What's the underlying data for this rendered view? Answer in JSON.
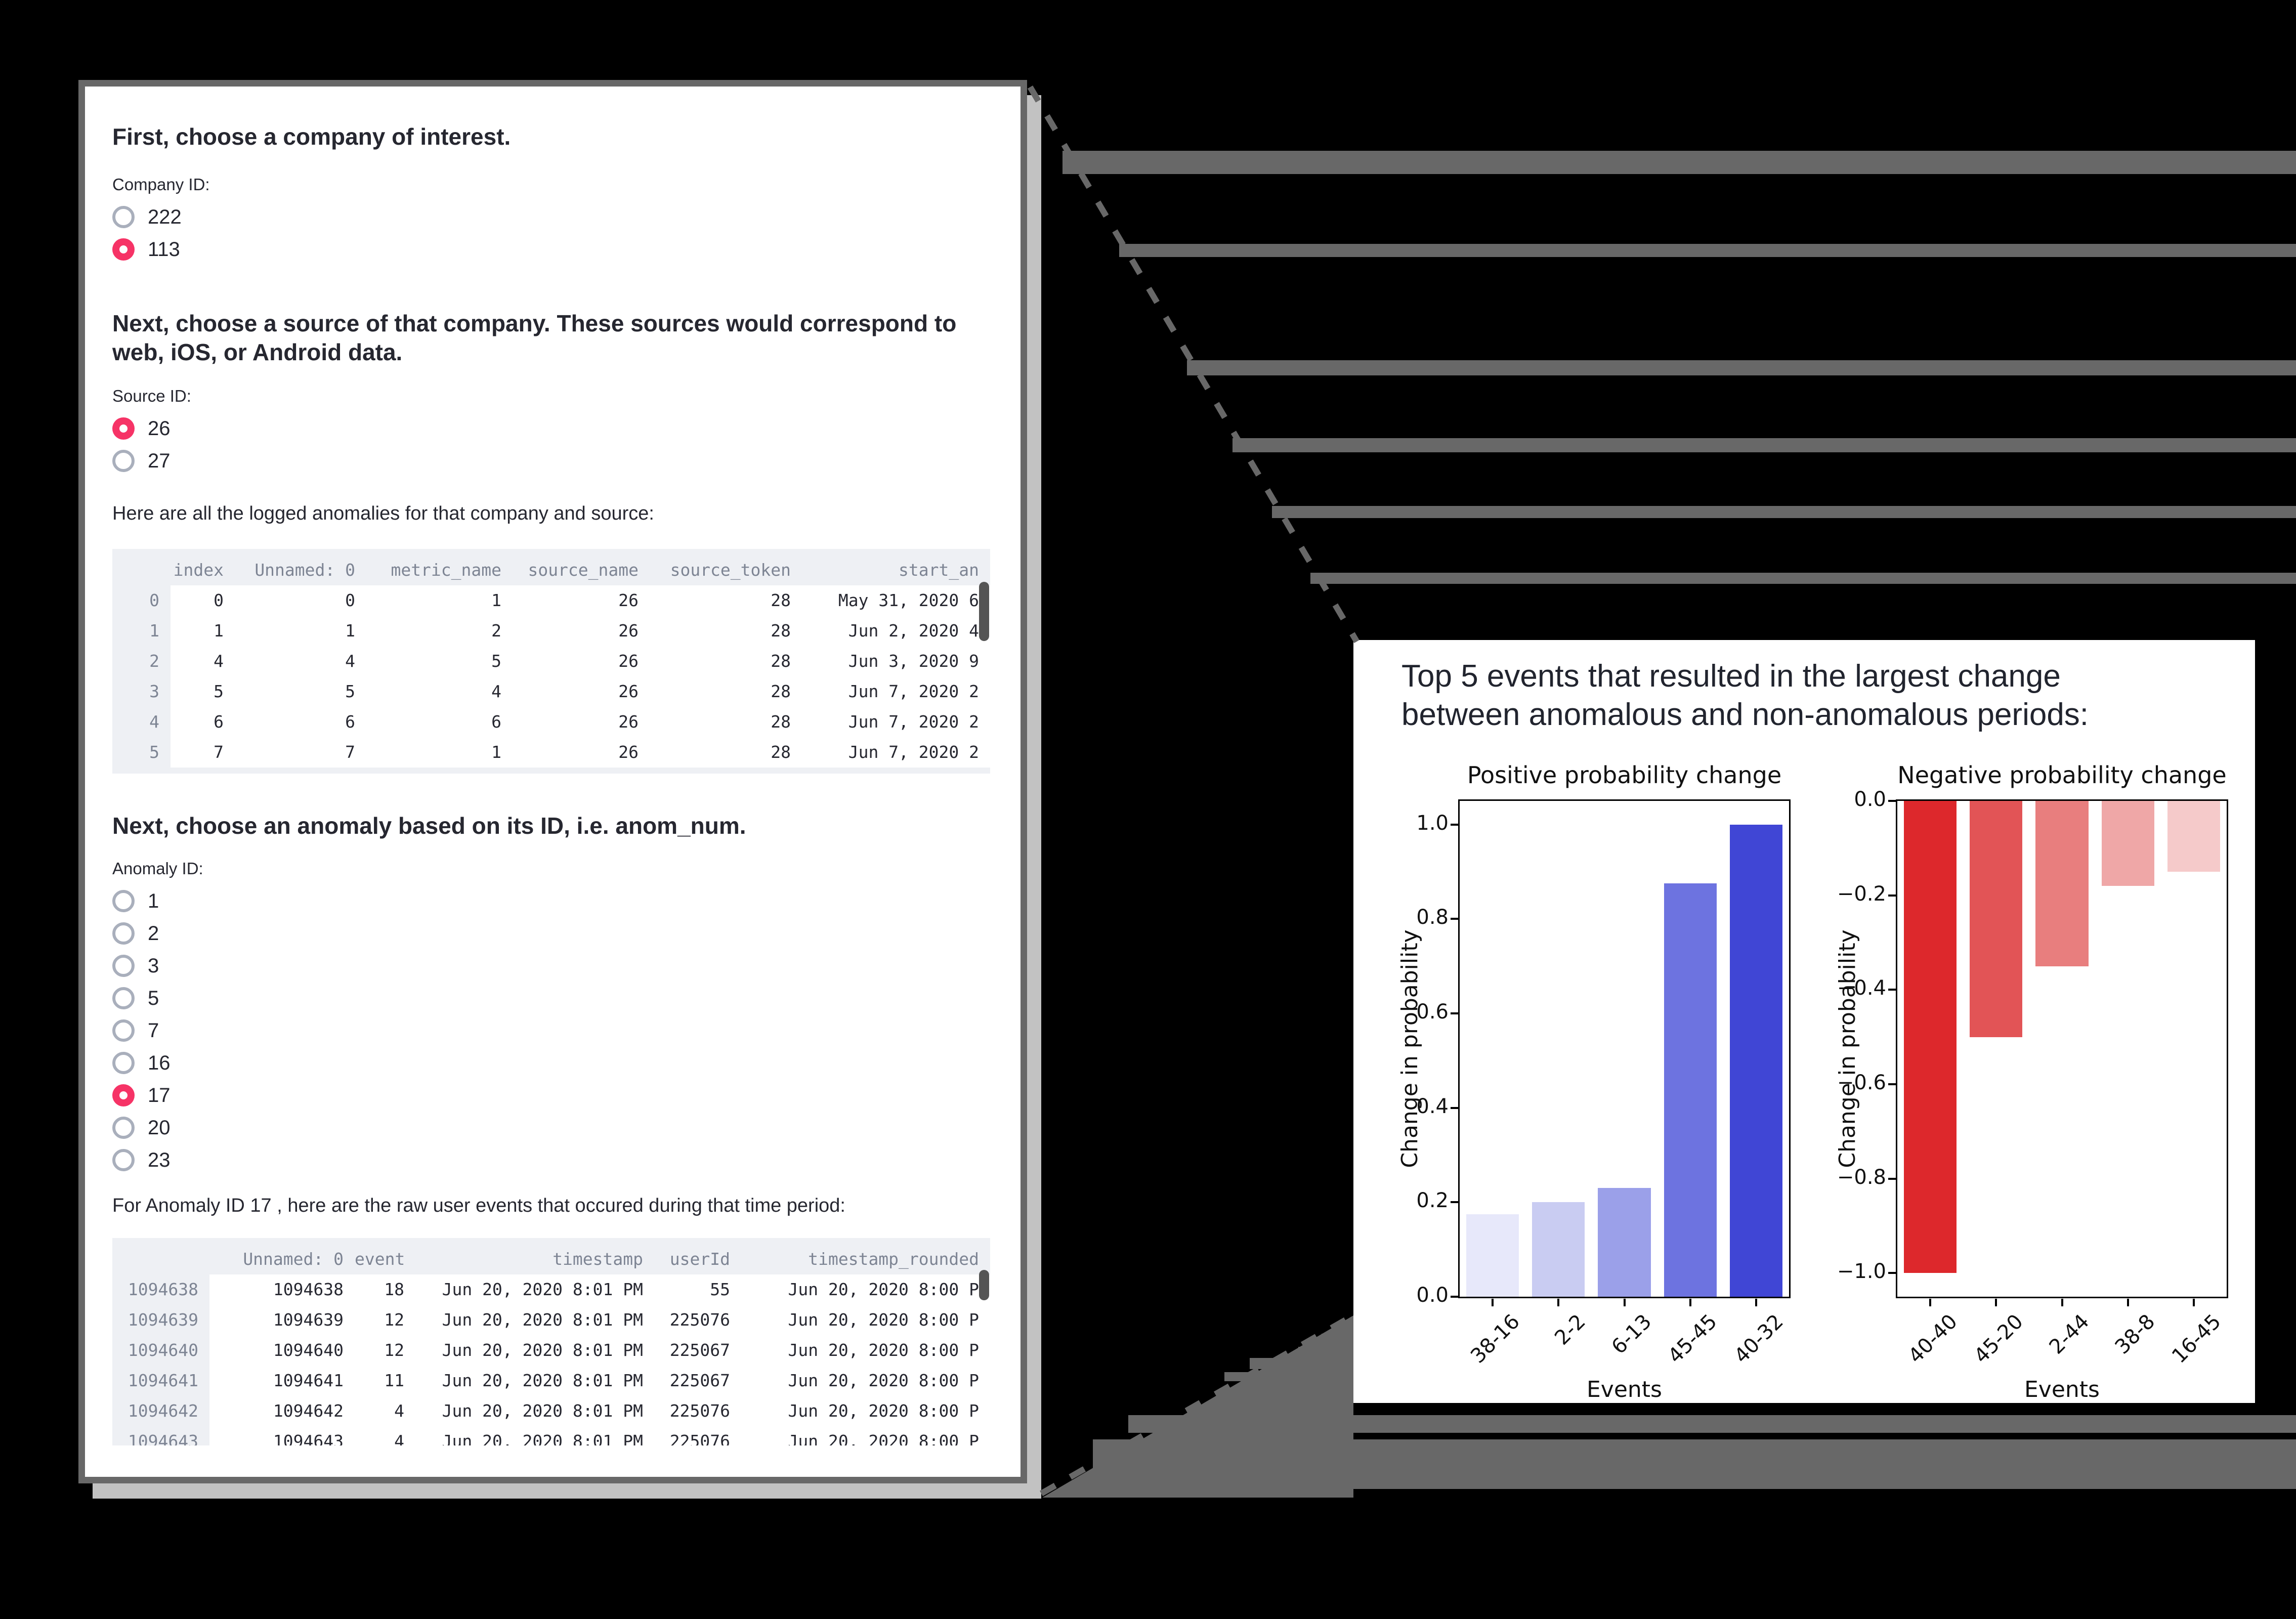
{
  "app": {
    "section1_heading": "First, choose a company of interest.",
    "company_label": "Company ID:",
    "company_options": [
      {
        "label": "222",
        "selected": false
      },
      {
        "label": "113",
        "selected": true
      }
    ],
    "section2_heading_lines": [
      "Next, choose a source of that company. These sources would correspond to",
      "web, iOS, or Android data."
    ],
    "source_label": "Source ID:",
    "source_options": [
      {
        "label": "26",
        "selected": true
      },
      {
        "label": "27",
        "selected": false
      }
    ],
    "anomalies_intro": "Here are all the logged anomalies for that company and source:",
    "anomalies_table": {
      "columns": [
        "",
        "index",
        "Unnamed: 0",
        "metric_name",
        "source_name",
        "source_token",
        "start_an"
      ],
      "rows": [
        [
          "0",
          "0",
          "0",
          "1",
          "26",
          "28",
          "May 31, 2020 6"
        ],
        [
          "1",
          "1",
          "1",
          "2",
          "26",
          "28",
          "Jun 2, 2020 4"
        ],
        [
          "2",
          "4",
          "4",
          "5",
          "26",
          "28",
          "Jun 3, 2020 9"
        ],
        [
          "3",
          "5",
          "5",
          "4",
          "26",
          "28",
          "Jun 7, 2020 2"
        ],
        [
          "4",
          "6",
          "6",
          "6",
          "26",
          "28",
          "Jun 7, 2020 2"
        ],
        [
          "5",
          "7",
          "7",
          "1",
          "26",
          "28",
          "Jun 7, 2020 2"
        ]
      ]
    },
    "section3_heading": "Next, choose an anomaly based on its ID, i.e. anom_num.",
    "anomaly_label": "Anomaly ID:",
    "anomaly_options": [
      {
        "label": "1",
        "selected": false
      },
      {
        "label": "2",
        "selected": false
      },
      {
        "label": "3",
        "selected": false
      },
      {
        "label": "5",
        "selected": false
      },
      {
        "label": "7",
        "selected": false
      },
      {
        "label": "16",
        "selected": false
      },
      {
        "label": "17",
        "selected": true
      },
      {
        "label": "20",
        "selected": false
      },
      {
        "label": "23",
        "selected": false
      }
    ],
    "events_intro": "For Anomaly ID 17 , here are the raw user events that occured during that time period:",
    "events_table": {
      "columns": [
        "",
        "Unnamed: 0",
        "event",
        "timestamp",
        "userId",
        "timestamp_rounded"
      ],
      "rows": [
        [
          "1094638",
          "1094638",
          "18",
          "Jun 20, 2020 8:01 PM",
          "55",
          "Jun 20, 2020 8:00 P"
        ],
        [
          "1094639",
          "1094639",
          "12",
          "Jun 20, 2020 8:01 PM",
          "225076",
          "Jun 20, 2020 8:00 P"
        ],
        [
          "1094640",
          "1094640",
          "12",
          "Jun 20, 2020 8:01 PM",
          "225067",
          "Jun 20, 2020 8:00 P"
        ],
        [
          "1094641",
          "1094641",
          "11",
          "Jun 20, 2020 8:01 PM",
          "225067",
          "Jun 20, 2020 8:00 P"
        ],
        [
          "1094642",
          "1094642",
          "4",
          "Jun 20, 2020 8:01 PM",
          "225076",
          "Jun 20, 2020 8:00 P"
        ],
        [
          "1094643",
          "1094643",
          "4",
          "Jun 20, 2020 8:01 PM",
          "225076",
          "Jun 20, 2020 8:00 P"
        ]
      ]
    }
  },
  "panel": {
    "title_lines": [
      "Top 5 events that resulted in the largest change",
      "between anomalous and non-anomalous periods:"
    ]
  },
  "chart_data": [
    {
      "type": "bar",
      "title": "Positive probability change",
      "xlabel": "Events",
      "ylabel": "Change in probability",
      "categories": [
        "38-16",
        "2-2",
        "6-13",
        "45-45",
        "40-32"
      ],
      "values": [
        0.175,
        0.2,
        0.23,
        0.875,
        1.0
      ],
      "ylim": [
        0,
        1.05
      ],
      "yticks": [
        0.0,
        0.2,
        0.4,
        0.6,
        0.8,
        1.0
      ],
      "grid": false,
      "legend": "none",
      "bar_colors": [
        "#e7e8fa",
        "#c9ccf2",
        "#9ba0e9",
        "#6d73e0",
        "#4046d5"
      ]
    },
    {
      "type": "bar",
      "title": "Negative probability change",
      "xlabel": "Events",
      "ylabel": "Change in probability",
      "categories": [
        "40-40",
        "45-20",
        "2-44",
        "38-8",
        "16-45"
      ],
      "values": [
        -1.0,
        -0.5,
        -0.35,
        -0.18,
        -0.15
      ],
      "ylim": [
        -1.05,
        0
      ],
      "yticks": [
        0.0,
        -0.2,
        -0.4,
        -0.6,
        -0.8,
        -1.0
      ],
      "grid": false,
      "legend": "none",
      "bar_colors": [
        "#dd282c",
        "#e25456",
        "#e87e7e",
        "#efa7a7",
        "#f5caca"
      ]
    }
  ],
  "colors": {
    "background": "#000000",
    "window_frame": "#686868",
    "window_shadow": "#c2c2c2",
    "text": "#262730",
    "table_muted": "#7d8493",
    "table_bg": "#eef0f4",
    "radio_selected": "#f63366",
    "radio_border": "#a9afbc"
  }
}
